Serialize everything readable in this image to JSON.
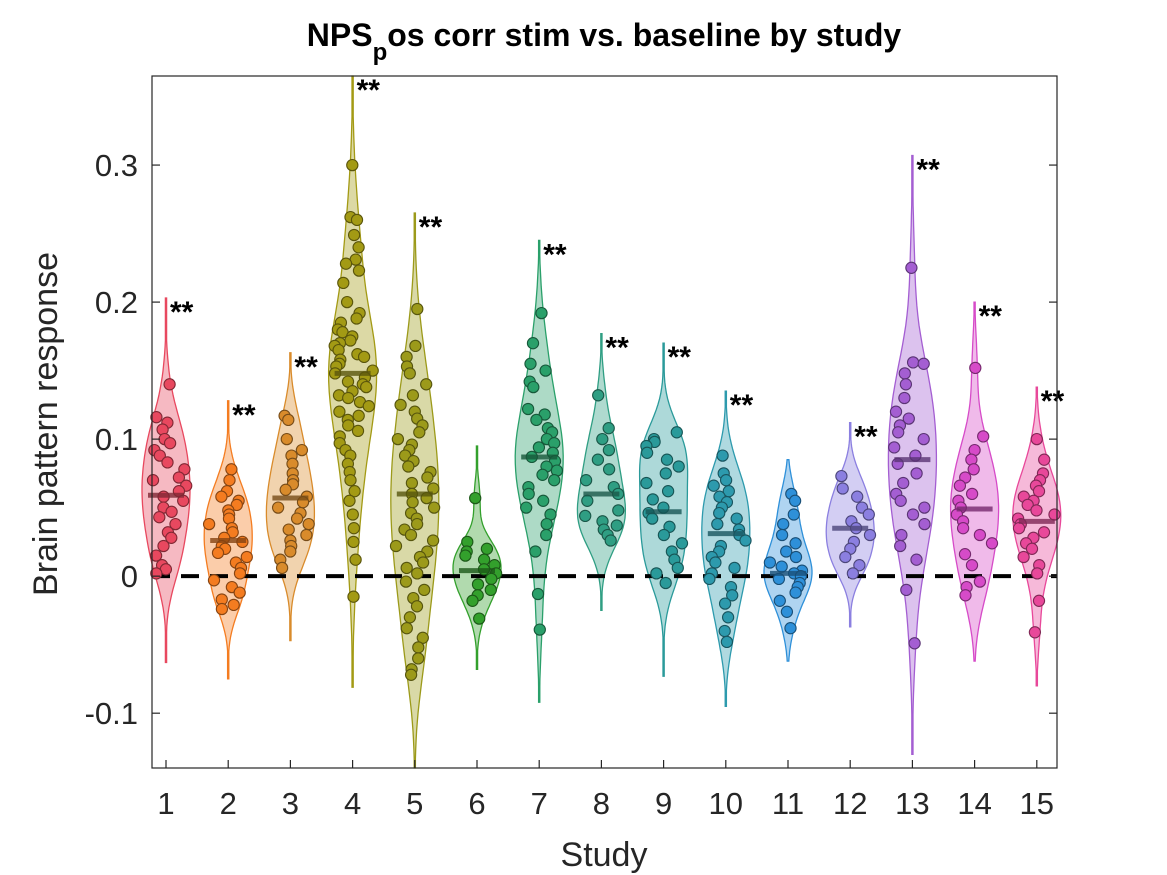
{
  "chart_data": {
    "type": "violin",
    "title_main": "NPS",
    "title_sub": "p",
    "title_rest": "os corr stim vs. baseline by study",
    "xlabel": "Study",
    "ylabel": "Brain pattern response",
    "ylim": [
      -0.14,
      0.365
    ],
    "yticks": [
      -0.1,
      0,
      0.1,
      0.2,
      0.3
    ],
    "ytick_labels": [
      "-0.1",
      "0",
      "0.1",
      "0.2",
      "0.3"
    ],
    "baseline": 0,
    "grid": false,
    "legend": "none",
    "categories": [
      "1",
      "2",
      "3",
      "4",
      "5",
      "6",
      "7",
      "8",
      "9",
      "10",
      "11",
      "12",
      "13",
      "14",
      "15"
    ],
    "colors": [
      "#e8485f",
      "#f47c20",
      "#d98b2b",
      "#a39a14",
      "#9c9a1a",
      "#33a02c",
      "#2aa06a",
      "#2f9e83",
      "#2a9a9a",
      "#2d9aad",
      "#2e90d9",
      "#8b7fe0",
      "#a45ed2",
      "#d64bc8",
      "#e8489a"
    ],
    "series": [
      {
        "name": "1",
        "mean": 0.059,
        "range": [
          -0.063,
          0.203
        ],
        "sig": "**",
        "points": [
          0.14,
          0.116,
          0.112,
          0.107,
          0.1,
          0.097,
          0.092,
          0.088,
          0.083,
          0.078,
          0.072,
          0.07,
          0.066,
          0.062,
          0.058,
          0.055,
          0.05,
          0.047,
          0.043,
          0.038,
          0.032,
          0.028,
          0.022,
          0.015,
          0.008,
          0.005,
          0.002
        ]
      },
      {
        "name": "2",
        "mean": 0.026,
        "range": [
          -0.075,
          0.128
        ],
        "sig": "**",
        "points": [
          0.078,
          0.07,
          0.062,
          0.058,
          0.055,
          0.052,
          0.048,
          0.045,
          0.042,
          0.038,
          0.035,
          0.032,
          0.028,
          0.025,
          0.022,
          0.02,
          0.017,
          0.014,
          0.01,
          0.006,
          0.002,
          -0.003,
          -0.008,
          -0.012,
          -0.017,
          -0.021,
          -0.024
        ]
      },
      {
        "name": "3",
        "mean": 0.057,
        "range": [
          -0.047,
          0.163
        ],
        "sig": "**",
        "points": [
          0.117,
          0.114,
          0.1,
          0.092,
          0.088,
          0.082,
          0.075,
          0.07,
          0.067,
          0.063,
          0.058,
          0.054,
          0.05,
          0.046,
          0.042,
          0.038,
          0.034,
          0.03,
          0.026,
          0.022,
          0.018,
          0.012,
          0.006
        ]
      },
      {
        "name": "4",
        "mean": 0.148,
        "range": [
          -0.081,
          0.365
        ],
        "sig": "**",
        "points": [
          0.3,
          0.262,
          0.26,
          0.249,
          0.24,
          0.231,
          0.228,
          0.223,
          0.214,
          0.2,
          0.192,
          0.188,
          0.185,
          0.18,
          0.178,
          0.175,
          0.172,
          0.17,
          0.168,
          0.165,
          0.162,
          0.16,
          0.158,
          0.155,
          0.153,
          0.15,
          0.148,
          0.145,
          0.142,
          0.14,
          0.138,
          0.135,
          0.132,
          0.13,
          0.127,
          0.124,
          0.12,
          0.117,
          0.114,
          0.11,
          0.106,
          0.102,
          0.097,
          0.092,
          0.088,
          0.082,
          0.076,
          0.07,
          0.062,
          0.055,
          0.045,
          0.035,
          0.025,
          0.012,
          -0.015
        ]
      },
      {
        "name": "5",
        "mean": 0.06,
        "range": [
          -0.14,
          0.265
        ],
        "sig": "**",
        "points": [
          0.195,
          0.168,
          0.16,
          0.153,
          0.148,
          0.14,
          0.132,
          0.125,
          0.12,
          0.115,
          0.11,
          0.105,
          0.1,
          0.096,
          0.092,
          0.088,
          0.084,
          0.08,
          0.076,
          0.072,
          0.068,
          0.064,
          0.06,
          0.057,
          0.054,
          0.05,
          0.046,
          0.042,
          0.038,
          0.034,
          0.03,
          0.026,
          0.022,
          0.018,
          0.014,
          0.01,
          0.006,
          0.002,
          -0.004,
          -0.01,
          -0.016,
          -0.022,
          -0.03,
          -0.038,
          -0.045,
          -0.052,
          -0.06,
          -0.068,
          -0.072
        ]
      },
      {
        "name": "6",
        "mean": 0.004,
        "range": [
          -0.068,
          0.095
        ],
        "sig": "",
        "points": [
          0.057,
          0.025,
          0.02,
          0.018,
          0.015,
          0.012,
          0.008,
          0.005,
          0.002,
          -0.002,
          -0.006,
          -0.01,
          -0.014,
          -0.018,
          -0.031
        ]
      },
      {
        "name": "7",
        "mean": 0.087,
        "range": [
          -0.092,
          0.245
        ],
        "sig": "**",
        "points": [
          0.192,
          0.17,
          0.155,
          0.15,
          0.142,
          0.138,
          0.122,
          0.118,
          0.114,
          0.108,
          0.105,
          0.1,
          0.097,
          0.094,
          0.09,
          0.087,
          0.084,
          0.08,
          0.077,
          0.074,
          0.07,
          0.065,
          0.06,
          0.055,
          0.05,
          0.045,
          0.038,
          0.03,
          0.018,
          -0.013,
          -0.039
        ]
      },
      {
        "name": "8",
        "mean": 0.06,
        "range": [
          -0.025,
          0.177
        ],
        "sig": "**",
        "points": [
          0.132,
          0.108,
          0.1,
          0.092,
          0.085,
          0.078,
          0.07,
          0.065,
          0.06,
          0.055,
          0.048,
          0.044,
          0.04,
          0.037,
          0.034,
          0.03,
          0.026
        ]
      },
      {
        "name": "9",
        "mean": 0.047,
        "range": [
          -0.073,
          0.17
        ],
        "sig": "**",
        "points": [
          0.105,
          0.1,
          0.098,
          0.095,
          0.09,
          0.085,
          0.08,
          0.075,
          0.068,
          0.062,
          0.056,
          0.05,
          0.046,
          0.042,
          0.036,
          0.03,
          0.024,
          0.018,
          0.012,
          0.006,
          0.002,
          -0.005
        ]
      },
      {
        "name": "10",
        "mean": 0.031,
        "range": [
          -0.095,
          0.135
        ],
        "sig": "**",
        "points": [
          0.088,
          0.075,
          0.07,
          0.066,
          0.062,
          0.058,
          0.054,
          0.05,
          0.046,
          0.042,
          0.038,
          0.034,
          0.03,
          0.026,
          0.022,
          0.018,
          0.014,
          0.01,
          0.006,
          0.002,
          -0.002,
          -0.008,
          -0.014,
          -0.02,
          -0.03,
          -0.04,
          -0.048
        ]
      },
      {
        "name": "11",
        "mean": 0.002,
        "range": [
          -0.062,
          0.085
        ],
        "sig": "",
        "points": [
          0.06,
          0.055,
          0.045,
          0.038,
          0.03,
          0.024,
          0.018,
          0.014,
          0.01,
          0.007,
          0.004,
          0.002,
          0.0,
          -0.002,
          -0.005,
          -0.008,
          -0.012,
          -0.018,
          -0.026,
          -0.038
        ]
      },
      {
        "name": "12",
        "mean": 0.035,
        "range": [
          -0.037,
          0.112
        ],
        "sig": "**",
        "points": [
          0.073,
          0.064,
          0.058,
          0.05,
          0.045,
          0.04,
          0.035,
          0.03,
          0.025,
          0.02,
          0.014,
          0.008,
          0.002
        ]
      },
      {
        "name": "13",
        "mean": 0.085,
        "range": [
          -0.13,
          0.307
        ],
        "sig": "**",
        "points": [
          0.225,
          0.156,
          0.155,
          0.148,
          0.14,
          0.13,
          0.12,
          0.115,
          0.11,
          0.105,
          0.1,
          0.094,
          0.088,
          0.082,
          0.075,
          0.068,
          0.06,
          0.055,
          0.05,
          0.045,
          0.038,
          0.03,
          0.022,
          0.012,
          -0.01,
          -0.049
        ]
      },
      {
        "name": "14",
        "mean": 0.049,
        "range": [
          -0.062,
          0.2
        ],
        "sig": "**",
        "points": [
          0.152,
          0.102,
          0.092,
          0.085,
          0.078,
          0.072,
          0.066,
          0.06,
          0.055,
          0.05,
          0.045,
          0.04,
          0.035,
          0.03,
          0.024,
          0.016,
          0.008,
          -0.004,
          -0.008,
          -0.014
        ]
      },
      {
        "name": "15",
        "mean": 0.04,
        "range": [
          -0.08,
          0.138
        ],
        "sig": "**",
        "points": [
          0.1,
          0.085,
          0.075,
          0.07,
          0.066,
          0.062,
          0.058,
          0.055,
          0.052,
          0.048,
          0.045,
          0.042,
          0.038,
          0.035,
          0.032,
          0.028,
          0.024,
          0.02,
          0.014,
          0.008,
          0.002,
          -0.018,
          -0.041
        ]
      }
    ]
  }
}
